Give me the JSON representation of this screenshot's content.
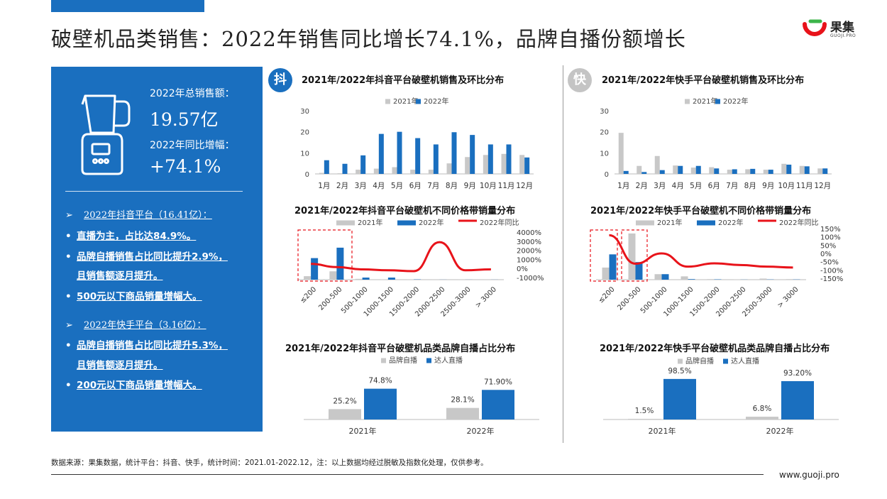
{
  "title": "破壁机品类销售：2022年销售同比增长74.1%，品牌自播份额增长",
  "logo": {
    "text": "果集",
    "sub": "GUOJI.PRO"
  },
  "panel": {
    "total_label": "2022年总销售额：",
    "total_value": "19.57亿",
    "growth_label": "2022年同比增幅：",
    "growth_value": "+74.1%",
    "douyin_head": "2022年抖音平台（16.41亿）：",
    "douyin_points": [
      "直播为主，占比达84.9%。",
      "品牌自播销售占比同比提升2.9%，",
      "且销售额逐月提升。",
      "500元以下商品销量增幅大。"
    ],
    "kuaishou_head": "2022年快手平台（3.16亿）：",
    "kuaishou_points": [
      "品牌自播销售占比同比提升5.3%，",
      "且销售额逐月提升。",
      "200元以下商品销量增幅大。"
    ],
    "arrow": "➢",
    "bullet": "•"
  },
  "badges": {
    "douyin": "抖",
    "kuaishou": "快"
  },
  "colors": {
    "blue": "#1a6fbf",
    "gray": "#c8c8c8",
    "red": "#e8131a",
    "badge_douyin": "#1a6fbf",
    "badge_kuaishou": "#c4c4c4"
  },
  "chart_titles": {
    "dy_month": "2021年/2022年抖音平台破壁机销售及环比分布",
    "ks_month": "2021年/2022年快手平台破壁机销售及环比分布",
    "dy_price": "2021年/2022年抖音平台破壁机不同价格带销量分布",
    "ks_price": "2021年/2022年快手平台破壁机不同价格带销量分布",
    "dy_self": "2021年/2022年抖音平台破壁机品类品牌自播占比分布",
    "ks_self": "2021年/2022年快手平台破壁机品类品牌自播占比分布"
  },
  "chart_data": [
    {
      "id": "dy_month",
      "type": "bar",
      "categories": [
        "1月",
        "2月",
        "3月",
        "4月",
        "5月",
        "6月",
        "7月",
        "8月",
        "9月",
        "10月",
        "11月",
        "12月"
      ],
      "series": [
        {
          "name": "2021年",
          "values": [
            0.5,
            0.3,
            2,
            2.5,
            3.2,
            2,
            2,
            5,
            8,
            9,
            9.5,
            9
          ]
        },
        {
          "name": "2022年",
          "values": [
            6.5,
            4.8,
            8.8,
            19,
            20,
            17,
            14,
            19.8,
            18.5,
            14,
            14,
            7.8
          ]
        }
      ],
      "ylim": [
        0,
        30
      ],
      "yticks": [
        0,
        10,
        20,
        30
      ]
    },
    {
      "id": "ks_month",
      "type": "bar",
      "categories": [
        "1月",
        "2月",
        "3月",
        "4月",
        "5月",
        "6月",
        "7月",
        "8月",
        "9月",
        "10月",
        "11月",
        "12月"
      ],
      "series": [
        {
          "name": "2021年",
          "values": [
            19.5,
            3.8,
            8.5,
            4,
            3,
            3.2,
            2,
            2.2,
            2,
            4.8,
            3.8,
            2.6
          ]
        },
        {
          "name": "2022年",
          "values": [
            1.4,
            0.9,
            1.8,
            3.8,
            3.8,
            2.6,
            2.2,
            2.4,
            2,
            4.4,
            3.6,
            2.6
          ]
        }
      ],
      "ylim": [
        0,
        30
      ],
      "yticks": [
        0,
        10,
        20,
        30
      ]
    },
    {
      "id": "dy_price",
      "type": "bar+line",
      "categories": [
        "≤200",
        "200-500",
        "500-1000",
        "1000-1500",
        "1500-2000",
        "2000-2500",
        "2500-3000",
        "> 3000"
      ],
      "series": [
        {
          "name": "2021年",
          "values": [
            0.5,
            1.2,
            0.12,
            0.04,
            0.02,
            0.01,
            0.01,
            0.01
          ]
        },
        {
          "name": "2022年",
          "values": [
            3.1,
            4.6,
            0.3,
            0.3,
            0.04,
            0.01,
            0.01,
            0.01
          ]
        },
        {
          "name": "2022年同比",
          "axis": "right",
          "values": [
            500,
            150,
            -100,
            -200,
            -300,
            2900,
            -200,
            -100
          ]
        }
      ],
      "y2lim": [
        -1000,
        4000
      ],
      "y2ticks": [
        "4000%",
        "3000%",
        "2000%",
        "1000%",
        "0%",
        "-1000%"
      ]
    },
    {
      "id": "ks_price",
      "type": "bar+line",
      "categories": [
        "≤200",
        "200-500",
        "500-1000",
        "1000-1500",
        "1500-2000",
        "2000-2500",
        "2500-3000",
        "> 3000"
      ],
      "series": [
        {
          "name": "2021年",
          "values": [
            1.1,
            4.2,
            0.5,
            0.3,
            0.05,
            0.02,
            0.1,
            0.05
          ]
        },
        {
          "name": "2022年",
          "values": [
            2.3,
            1.6,
            0.5,
            0.05,
            0.03,
            0.01,
            0.02,
            0.02
          ]
        },
        {
          "name": "2022年同比",
          "axis": "right",
          "values": [
            110,
            -62,
            0,
            -80,
            -60,
            -70,
            -80,
            -85
          ]
        }
      ],
      "y2lim": [
        -150,
        150
      ],
      "y2ticks": [
        "150%",
        "100%",
        "50%",
        "0%",
        "-50%",
        "-100%",
        "-150%"
      ]
    },
    {
      "id": "dy_self",
      "type": "bar",
      "categories": [
        "2021年",
        "2022年"
      ],
      "series": [
        {
          "name": "品牌自播",
          "values": [
            25.2,
            28.1
          ],
          "labels": [
            "25.2%",
            "28.1%"
          ]
        },
        {
          "name": "达人直播",
          "values": [
            74.8,
            71.9
          ],
          "labels": [
            "74.8%",
            "71.90%"
          ]
        }
      ],
      "ylim": [
        0,
        100
      ]
    },
    {
      "id": "ks_self",
      "type": "bar",
      "categories": [
        "2021年",
        "2022年"
      ],
      "series": [
        {
          "name": "品牌自播",
          "values": [
            1.5,
            6.8
          ],
          "labels": [
            "1.5%",
            "6.8%"
          ]
        },
        {
          "name": "达人直播",
          "values": [
            98.5,
            93.2
          ],
          "labels": [
            "98.5%",
            "93.20%"
          ]
        }
      ],
      "ylim": [
        0,
        100
      ]
    }
  ],
  "footer": {
    "source": "数据来源：果集数据，统计平台：抖音、快手，统计时间：2021.01-2022.12，注：以上数据均经过脱敏及指数化处理，仅供参考。",
    "url": "www.guoji.pro"
  }
}
